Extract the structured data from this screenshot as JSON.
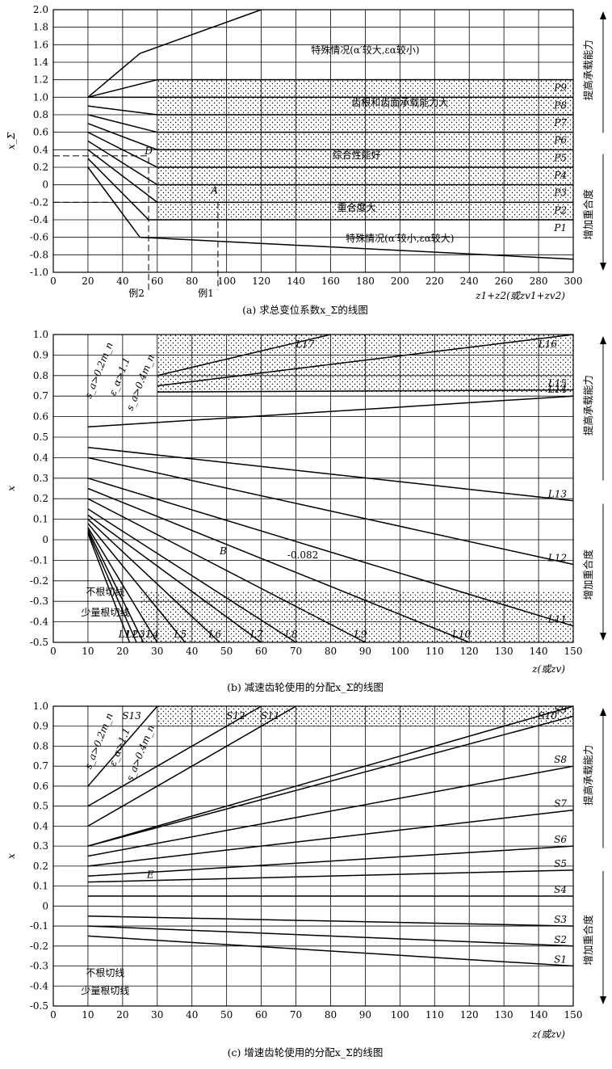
{
  "charts": [
    {
      "id": "a",
      "type": "line",
      "caption": "(a) 求总变位系数x_Σ的线图",
      "ylabel": "x_Σ",
      "xlabel": "z1+z2(或zv1+zv2)",
      "xlim": [
        0,
        300
      ],
      "ylim": [
        -1.0,
        2.0
      ],
      "xticks": [
        0,
        20,
        40,
        60,
        80,
        100,
        120,
        140,
        160,
        180,
        200,
        220,
        240,
        260,
        280,
        300
      ],
      "yticks": [
        "2.0",
        "1.8",
        "1.6",
        "1.4",
        "1.2",
        "1.0",
        "0.8",
        "0.6",
        "0.4",
        "0.2",
        "0",
        "-0.2",
        "-0.4",
        "-0.6",
        "-0.8",
        "-1.0"
      ],
      "right_top": "提高承载能力",
      "right_bottom": "增加重合度",
      "lines": [
        {
          "name": "P9",
          "x": [
            20,
            60,
            300
          ],
          "y": [
            1.0,
            1.2,
            1.2
          ]
        },
        {
          "name": "P8",
          "x": [
            20,
            65,
            300
          ],
          "y": [
            1.0,
            1.0,
            1.0
          ]
        },
        {
          "name": "P7",
          "x": [
            20,
            60,
            300
          ],
          "y": [
            0.9,
            0.8,
            0.8
          ]
        },
        {
          "name": "P6",
          "x": [
            20,
            60,
            300
          ],
          "y": [
            0.8,
            0.6,
            0.6
          ]
        },
        {
          "name": "P5",
          "x": [
            20,
            60,
            300
          ],
          "y": [
            0.7,
            0.4,
            0.4
          ]
        },
        {
          "name": "P4",
          "x": [
            20,
            60,
            300
          ],
          "y": [
            0.6,
            0.2,
            0.2
          ]
        },
        {
          "name": "P3",
          "x": [
            20,
            60,
            300
          ],
          "y": [
            0.5,
            0.0,
            0.0
          ]
        },
        {
          "name": "P2",
          "x": [
            20,
            60,
            300
          ],
          "y": [
            0.4,
            -0.2,
            -0.2
          ]
        },
        {
          "name": "P1",
          "x": [
            20,
            55,
            300
          ],
          "y": [
            0.3,
            -0.4,
            -0.4
          ]
        },
        {
          "name": "upper_bound",
          "x": [
            20,
            50,
            120
          ],
          "y": [
            1.0,
            1.5,
            2.0
          ]
        },
        {
          "name": "lower_bound",
          "x": [
            20,
            50,
            300
          ],
          "y": [
            0.2,
            -0.6,
            -0.85
          ]
        }
      ],
      "band": {
        "y1": -0.4,
        "y2": 1.2
      },
      "annotations": [
        {
          "text": "特殊情况(α′较大,εα较小)",
          "x": 180,
          "y": 1.5
        },
        {
          "text": "齿根和齿面承载能力大",
          "x": 200,
          "y": 0.9
        },
        {
          "text": "综合性能好",
          "x": 175,
          "y": 0.3
        },
        {
          "text": "重合度大",
          "x": 175,
          "y": -0.3
        },
        {
          "text": "特殊情况(α′较小,εα较大)",
          "x": 200,
          "y": -0.65
        },
        {
          "text": "D",
          "x": 55,
          "y": 0.35
        },
        {
          "text": "A",
          "x": 93,
          "y": -0.1
        },
        {
          "text": "例2",
          "x": 48,
          "y": -1.25
        },
        {
          "text": "例1",
          "x": 88,
          "y": -1.25
        }
      ],
      "example_lines": [
        {
          "x": 55,
          "y": 0.33
        },
        {
          "x": 95,
          "y": -0.2
        }
      ]
    },
    {
      "id": "b",
      "type": "line",
      "caption": "(b) 减速齿轮使用的分配x_Σ的线图",
      "ylabel": "x",
      "xlabel": "z(或zv)",
      "xlim": [
        0,
        150
      ],
      "ylim": [
        -0.5,
        1.0
      ],
      "xticks": [
        0,
        10,
        20,
        30,
        40,
        50,
        60,
        70,
        80,
        90,
        100,
        110,
        120,
        130,
        140,
        150
      ],
      "yticks": [
        "1.0",
        "0.9",
        "0.8",
        "0.7",
        "0.6",
        "0.5",
        "0.4",
        "0.3",
        "0.2",
        "0.1",
        "0",
        "-0.1",
        "-0.2",
        "-0.3",
        "-0.4",
        "-0.5"
      ],
      "right_top": "提高承载能力",
      "right_bottom": "增加重合度",
      "lines": [
        {
          "name": "L17",
          "x": [
            30,
            80
          ],
          "y": [
            0.8,
            1.0
          ]
        },
        {
          "name": "L16",
          "x": [
            30,
            150
          ],
          "y": [
            0.75,
            1.0
          ]
        },
        {
          "name": "L15",
          "x": [
            30,
            150
          ],
          "y": [
            0.72,
            0.73
          ]
        },
        {
          "name": "L14",
          "x": [
            10,
            150
          ],
          "y": [
            0.55,
            0.7
          ]
        },
        {
          "name": "L13",
          "x": [
            10,
            150
          ],
          "y": [
            0.45,
            0.19
          ]
        },
        {
          "name": "L12",
          "x": [
            10,
            150
          ],
          "y": [
            0.4,
            -0.12
          ]
        },
        {
          "name": "L11",
          "x": [
            10,
            150
          ],
          "y": [
            0.3,
            -0.42
          ]
        },
        {
          "name": "L10",
          "x": [
            10,
            120
          ],
          "y": [
            0.25,
            -0.5
          ]
        },
        {
          "name": "L9",
          "x": [
            10,
            90
          ],
          "y": [
            0.2,
            -0.5
          ]
        },
        {
          "name": "L8",
          "x": [
            10,
            70
          ],
          "y": [
            0.15,
            -0.5
          ]
        },
        {
          "name": "L7",
          "x": [
            10,
            60
          ],
          "y": [
            0.12,
            -0.5
          ]
        },
        {
          "name": "L6",
          "x": [
            10,
            48
          ],
          "y": [
            0.1,
            -0.5
          ]
        },
        {
          "name": "L5",
          "x": [
            10,
            38
          ],
          "y": [
            0.08,
            -0.5
          ]
        },
        {
          "name": "L4",
          "x": [
            10,
            30
          ],
          "y": [
            0.06,
            -0.5
          ]
        },
        {
          "name": "L3",
          "x": [
            10,
            26
          ],
          "y": [
            0.05,
            -0.5
          ]
        },
        {
          "name": "L2",
          "x": [
            10,
            24
          ],
          "y": [
            0.04,
            -0.5
          ]
        },
        {
          "name": "L1",
          "x": [
            10,
            22
          ],
          "y": [
            0.03,
            -0.5
          ]
        }
      ],
      "annotations": [
        {
          "text": "B",
          "x": 49,
          "y": -0.07
        },
        {
          "text": "-0.082",
          "x": 72,
          "y": -0.09
        },
        {
          "text": "不根切线",
          "x": 15,
          "y": -0.27
        },
        {
          "text": "少量根切线",
          "x": 15,
          "y": -0.37
        }
      ],
      "limit_labels": [
        "s_a>0.2m_n",
        "ε_α>1.1",
        "s_a>0.4m_n"
      ]
    },
    {
      "id": "c",
      "type": "line",
      "caption": "(c) 增速齿轮使用的分配x_Σ的线图",
      "ylabel": "x",
      "xlabel": "z(或zv)",
      "xlim": [
        0,
        150
      ],
      "ylim": [
        -0.5,
        1.0
      ],
      "xticks": [
        0,
        10,
        20,
        30,
        40,
        50,
        60,
        70,
        80,
        90,
        100,
        110,
        120,
        130,
        140,
        150
      ],
      "yticks": [
        "1.0",
        "0.9",
        "0.8",
        "0.7",
        "0.6",
        "0.5",
        "0.4",
        "0.3",
        "0.2",
        "0.1",
        "0",
        "-0.1",
        "-0.2",
        "-0.3",
        "-0.4",
        "-0.5"
      ],
      "right_top": "提高承载能力",
      "right_bottom": "增加重合度",
      "lines": [
        {
          "name": "S13",
          "x": [
            10,
            30
          ],
          "y": [
            0.6,
            1.0
          ]
        },
        {
          "name": "S12",
          "x": [
            10,
            60
          ],
          "y": [
            0.5,
            1.0
          ]
        },
        {
          "name": "S11",
          "x": [
            10,
            70
          ],
          "y": [
            0.4,
            1.0
          ]
        },
        {
          "name": "S10",
          "x": [
            10,
            150
          ],
          "y": [
            0.3,
            1.0
          ]
        },
        {
          "name": "S9",
          "x": [
            10,
            150
          ],
          "y": [
            0.3,
            0.95
          ]
        },
        {
          "name": "S8",
          "x": [
            10,
            150
          ],
          "y": [
            0.25,
            0.7
          ]
        },
        {
          "name": "S7",
          "x": [
            10,
            150
          ],
          "y": [
            0.2,
            0.48
          ]
        },
        {
          "name": "S6",
          "x": [
            10,
            150
          ],
          "y": [
            0.15,
            0.3
          ]
        },
        {
          "name": "S5",
          "x": [
            10,
            150
          ],
          "y": [
            0.12,
            0.18
          ]
        },
        {
          "name": "S4",
          "x": [
            10,
            150
          ],
          "y": [
            0.05,
            0.05
          ]
        },
        {
          "name": "S3",
          "x": [
            10,
            150
          ],
          "y": [
            -0.05,
            -0.1
          ]
        },
        {
          "name": "S2",
          "x": [
            10,
            150
          ],
          "y": [
            -0.1,
            -0.2
          ]
        },
        {
          "name": "S1",
          "x": [
            10,
            150
          ],
          "y": [
            -0.15,
            -0.3
          ]
        }
      ],
      "annotations": [
        {
          "text": "E",
          "x": 28,
          "y": 0.14
        },
        {
          "text": "不根切线",
          "x": 15,
          "y": -0.35
        },
        {
          "text": "少量根切线",
          "x": 15,
          "y": -0.44
        }
      ],
      "limit_labels": [
        "s_a>0.2m_n",
        "ε_α>1.1",
        "s_a>0.4m_n"
      ]
    }
  ]
}
